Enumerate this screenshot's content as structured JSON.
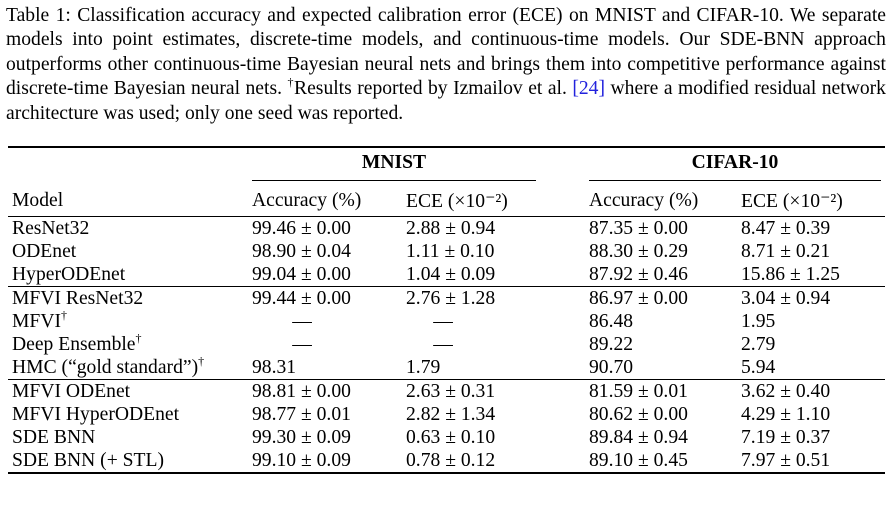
{
  "caption": {
    "line1": "Table 1: Classification accuracy and expected calibration error (ECE) on MNIST and CIFAR-10.",
    "line2": "We separate models into point estimates, discrete-time models, and continuous-time models. Our",
    "line3": "SDE-BNN approach outperforms other continuous-time Bayesian neural nets and brings them into",
    "line4_a": "competitive performance against discrete-time Bayesian neural nets.",
    "line4_dagger": "†",
    "line4_b": "Results reported by Izmailov",
    "line5_a": "et al.",
    "line5_ref": "[24]",
    "line5_b": "where a modified residual network architecture was used; only one seed was reported."
  },
  "table": {
    "groups": {
      "mnist": "MNIST",
      "cifar": "CIFAR-10"
    },
    "columns": {
      "model": "Model",
      "mnist_acc": "Accuracy (%)",
      "mnist_ece": "ECE (×10⁻²)",
      "cifar_acc": "Accuracy (%)",
      "cifar_ece": "ECE (×10⁻²)"
    },
    "sections": [
      {
        "rows": [
          {
            "model": "ResNet32",
            "dagger": "",
            "mnist_acc": "99.46 ± 0.00",
            "mnist_ece": "2.88 ± 0.94",
            "cifar_acc": "87.35 ± 0.00",
            "cifar_ece": "8.47 ± 0.39"
          },
          {
            "model": "ODEnet",
            "dagger": "",
            "mnist_acc": "98.90 ± 0.04",
            "mnist_ece": "1.11 ± 0.10",
            "cifar_acc": "88.30 ± 0.29",
            "cifar_ece": "8.71 ± 0.21"
          },
          {
            "model": "HyperODEnet",
            "dagger": "",
            "mnist_acc": "99.04 ± 0.00",
            "mnist_ece": "1.04 ± 0.09",
            "cifar_acc": "87.92 ± 0.46",
            "cifar_ece": "15.86 ± 1.25"
          }
        ]
      },
      {
        "rows": [
          {
            "model": "MFVI ResNet32",
            "dagger": "",
            "mnist_acc": "99.44 ± 0.00",
            "mnist_ece": "2.76 ± 1.28",
            "cifar_acc": "86.97 ± 0.00",
            "cifar_ece": "3.04 ± 0.94"
          },
          {
            "model": "MFVI",
            "dagger": "†",
            "mnist_acc": "—",
            "mnist_ece": "—",
            "cifar_acc": "86.48",
            "cifar_ece": "1.95"
          },
          {
            "model": "Deep Ensemble",
            "dagger": "†",
            "mnist_acc": "—",
            "mnist_ece": "—",
            "cifar_acc": "89.22",
            "cifar_ece": "2.79"
          },
          {
            "model": "HMC (“gold standard”)",
            "dagger": "†",
            "mnist_acc": "98.31",
            "mnist_ece": "1.79",
            "cifar_acc": "90.70",
            "cifar_ece": "5.94"
          }
        ]
      },
      {
        "rows": [
          {
            "model": "MFVI ODEnet",
            "dagger": "",
            "mnist_acc": "98.81 ± 0.00",
            "mnist_ece": "2.63 ± 0.31",
            "cifar_acc": "81.59 ± 0.01",
            "cifar_ece": "3.62 ± 0.40"
          },
          {
            "model": "MFVI HyperODEnet",
            "dagger": "",
            "mnist_acc": "98.77 ± 0.01",
            "mnist_ece": "2.82 ± 1.34",
            "cifar_acc": "80.62 ± 0.00",
            "cifar_ece": "4.29 ± 1.10"
          },
          {
            "model": "SDE BNN",
            "dagger": "",
            "mnist_acc": "99.30 ± 0.09",
            "mnist_ece": "0.63 ± 0.10",
            "cifar_acc": "89.84 ± 0.94",
            "cifar_ece": "7.19 ± 0.37"
          },
          {
            "model": "SDE BNN (+ STL)",
            "dagger": "",
            "mnist_acc": "99.10 ± 0.09",
            "mnist_ece": "0.78 ± 0.12",
            "cifar_acc": "89.10 ± 0.45",
            "cifar_ece": "7.97 ± 0.51"
          }
        ]
      }
    ]
  }
}
